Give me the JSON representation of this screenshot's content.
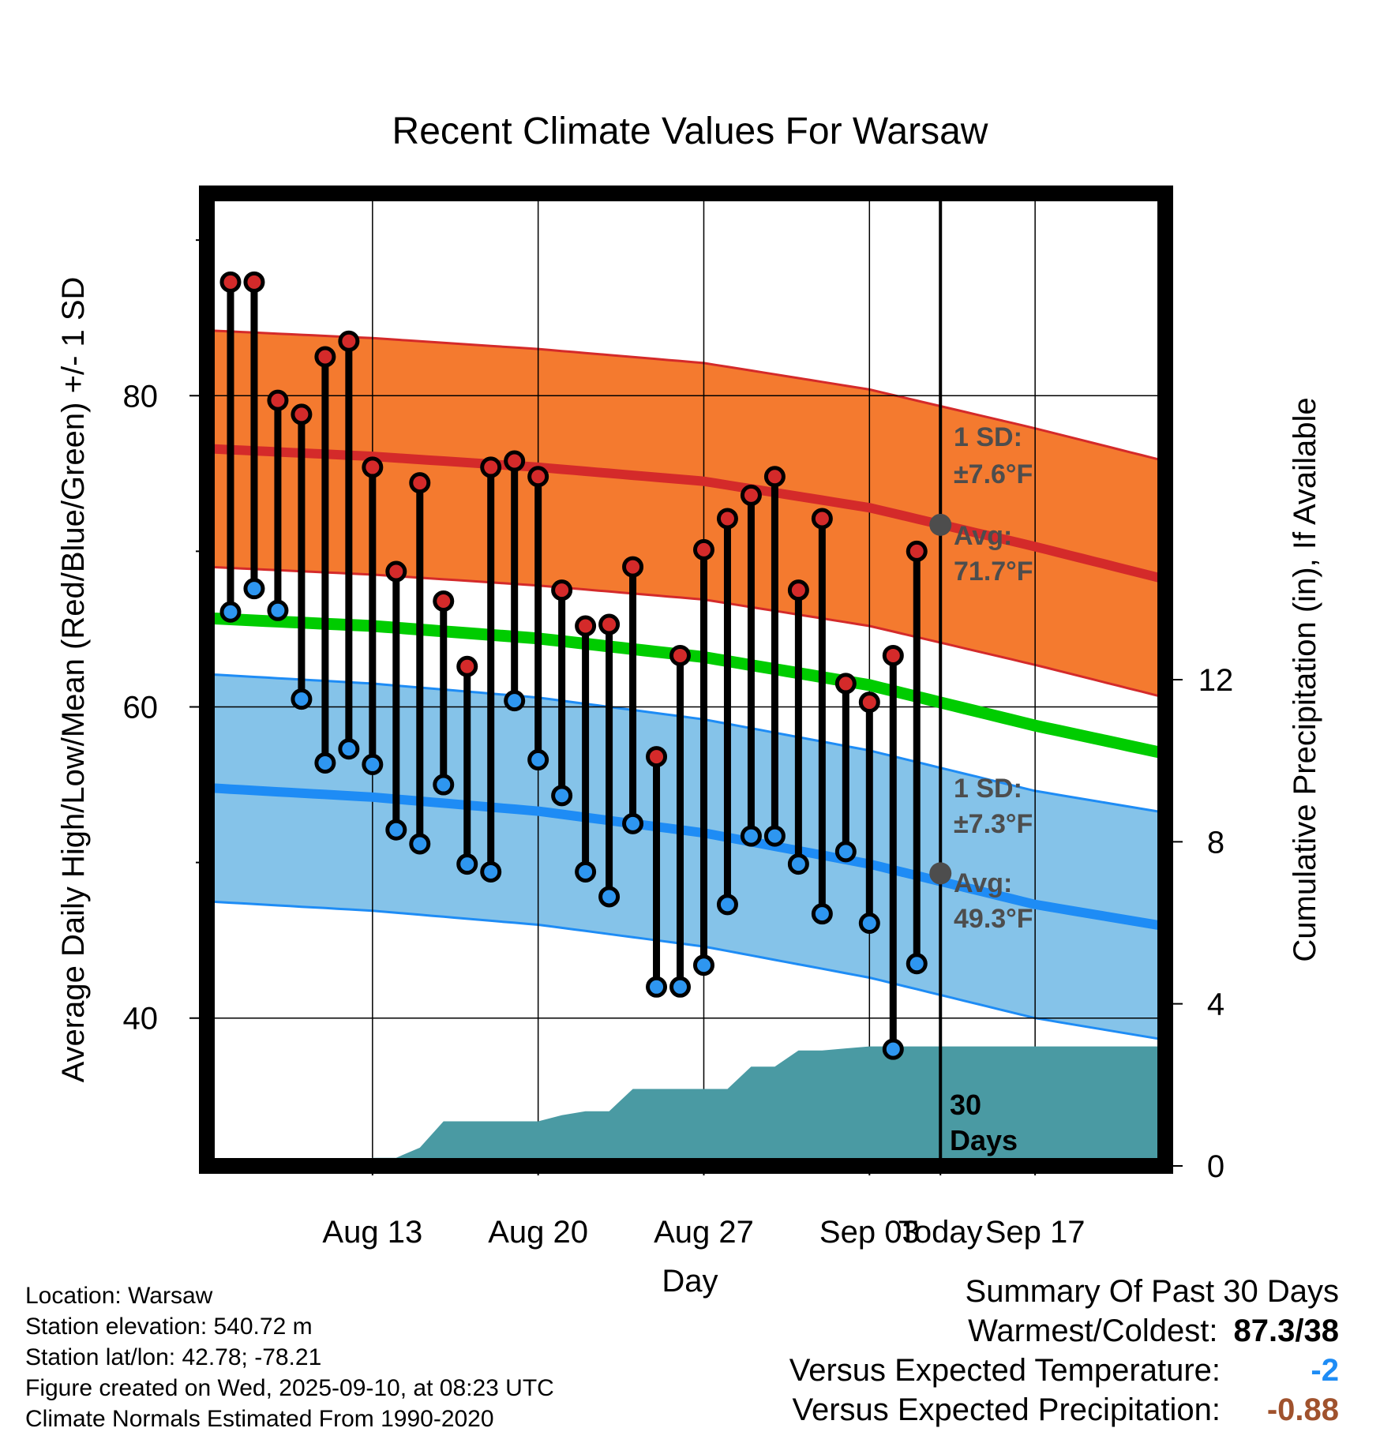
{
  "chart_data": {
    "type": "line",
    "title": "Recent Climate Values For Warsaw",
    "xlabel": "Day",
    "ylabel": "Average Daily High/Low/Mean (Red/Blue/Green) +/- 1 SD",
    "y2label": "Cumulative Precipitation (in), If Available",
    "x_ticks": [
      "Aug 13",
      "Aug 20",
      "Aug 27",
      "Sep 03",
      "Today",
      "Sep 17"
    ],
    "y_ticks": [
      "40",
      "60",
      "80"
    ],
    "y2_ticks": [
      "0",
      "4",
      "8",
      "12"
    ],
    "ylim": [
      30.5,
      93
    ],
    "y2lim": [
      0,
      24
    ],
    "days": [
      1,
      2,
      3,
      4,
      5,
      6,
      7,
      8,
      9,
      10,
      11,
      12,
      13,
      14,
      15,
      16,
      17,
      18,
      19,
      20,
      21,
      22,
      23,
      24,
      25,
      26,
      27,
      28,
      29,
      30
    ],
    "highs": [
      87.3,
      87.3,
      79.7,
      78.8,
      82.5,
      83.5,
      75.4,
      68.7,
      74.4,
      66.8,
      62.6,
      75.4,
      75.8,
      74.8,
      67.5,
      65.2,
      65.3,
      69.0,
      56.8,
      63.3,
      70.1,
      72.1,
      73.6,
      74.8,
      67.5,
      72.1,
      61.5,
      60.3,
      63.3,
      70.0
    ],
    "lows": [
      66.1,
      67.6,
      66.2,
      60.5,
      56.4,
      57.3,
      56.3,
      52.1,
      51.2,
      55.0,
      49.9,
      49.4,
      60.4,
      56.6,
      54.3,
      49.4,
      47.8,
      52.5,
      42.0,
      42.0,
      43.4,
      47.3,
      51.7,
      51.7,
      49.9,
      46.7,
      50.7,
      46.1,
      38.0,
      43.5
    ],
    "normal_x": [
      0,
      7,
      14,
      21,
      28,
      35,
      40.5
    ],
    "normal_high": [
      76.6,
      76.1,
      75.4,
      74.5,
      72.8,
      70.3,
      68.2
    ],
    "normal_high_sd": 7.6,
    "normal_low": [
      54.8,
      54.2,
      53.3,
      51.9,
      49.9,
      47.3,
      45.9
    ],
    "normal_low_sd": 7.3,
    "normal_mean": [
      65.7,
      65.2,
      64.4,
      63.2,
      61.4,
      58.8,
      57.0
    ],
    "precip_x": [
      0,
      6,
      7,
      8,
      9,
      10,
      11,
      12,
      13,
      14,
      15,
      16,
      17,
      18,
      19,
      20,
      21,
      22,
      23,
      24,
      25,
      26,
      27,
      28,
      29,
      30,
      31,
      40.5
    ],
    "precip_cumulative": [
      0,
      0,
      0.2,
      0.2,
      0.45,
      1.1,
      1.1,
      1.1,
      1.1,
      1.1,
      1.25,
      1.35,
      1.35,
      1.9,
      1.9,
      1.9,
      1.9,
      1.9,
      2.45,
      2.45,
      2.85,
      2.85,
      2.9,
      2.95,
      2.95,
      2.95,
      2.95,
      2.95
    ],
    "today_day": 31,
    "annotations": {
      "high_sd_label": "1 SD:",
      "high_sd_value": "±7.6°F",
      "high_avg_label": "Avg:",
      "high_avg_value": "71.7°F",
      "low_sd_label": "1 SD:",
      "low_sd_value": "±7.3°F",
      "low_avg_label": "Avg:",
      "low_avg_value": "49.3°F",
      "days_number": "30",
      "days_word": "Days"
    },
    "today_high_avg": 71.7,
    "today_low_avg": 49.3,
    "colors": {
      "high_band": "#f47a2f",
      "high_line": "#d42a2a",
      "high_edge": "#d42a2a",
      "low_band": "#85c3e9",
      "low_line": "#1e8cf5",
      "low_edge": "#1e8cf5",
      "mean_line": "#00cc00",
      "precip": "#4a9aa3",
      "high_dot": "#d42a2a",
      "low_dot": "#2e96f0",
      "avg_dot": "#4d4d4d"
    }
  },
  "info": {
    "location": "Location: Warsaw",
    "elevation": "Station elevation: 540.72 m",
    "latlon": "Station lat/lon: 42.78; -78.21",
    "created": "Figure created on Wed, 2025-09-10, at 08:23 UTC",
    "normals": "Climate Normals Estimated From 1990-2020"
  },
  "summary": {
    "title": "Summary Of Past 30 Days",
    "warmest_label": "Warmest/Coldest:",
    "warmest_value": "87.3/38",
    "temp_label": "Versus Expected Temperature:",
    "temp_value": "-2",
    "temp_color": "#1e8cf5",
    "precip_label": "Versus Expected Precipitation:",
    "precip_value": "-0.88",
    "precip_color": "#a0522d"
  }
}
